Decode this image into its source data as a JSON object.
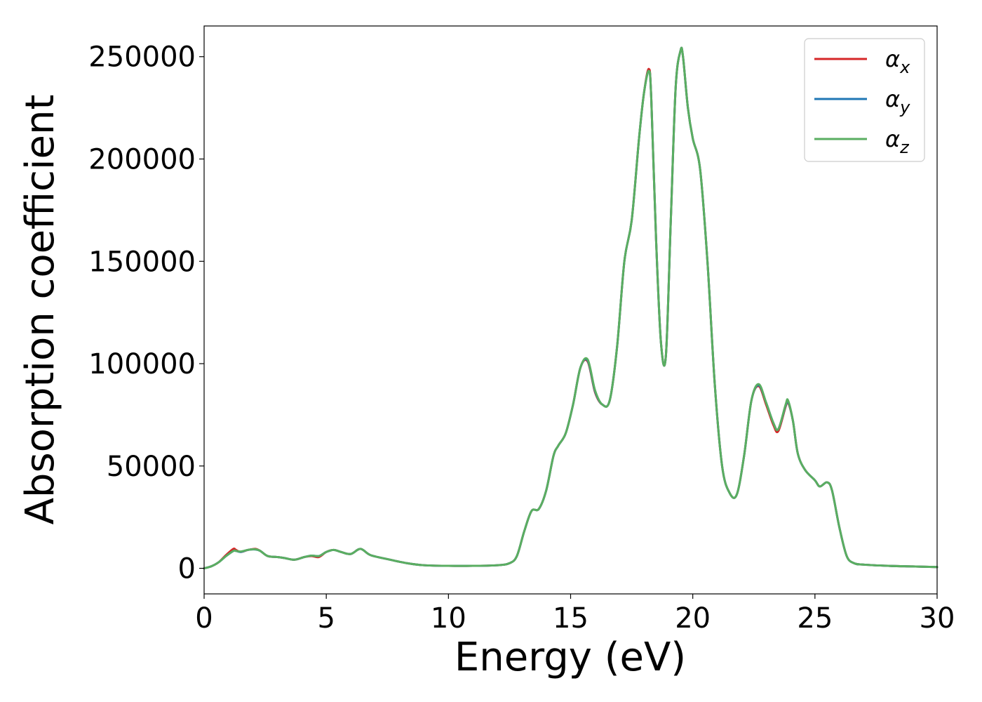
{
  "chart_data": {
    "type": "line",
    "xlabel": "Energy (eV)",
    "ylabel": "Absorption coefficient",
    "xlim": [
      0,
      30
    ],
    "ylim": [
      -12500,
      265000
    ],
    "xticks": [
      0,
      5,
      10,
      15,
      20,
      25,
      30
    ],
    "yticks": [
      0,
      50000,
      100000,
      150000,
      200000,
      250000
    ],
    "grid": false,
    "legend_position": "top-right",
    "series": [
      {
        "name": "α",
        "subscript": "x",
        "color": "#d62728",
        "x": [
          0,
          0.3,
          0.6,
          0.9,
          1.2,
          1.3,
          1.5,
          1.8,
          2.1,
          2.3,
          2.6,
          3.0,
          3.3,
          3.7,
          4.1,
          4.4,
          4.7,
          5.0,
          5.3,
          5.6,
          6.0,
          6.4,
          6.8,
          7.5,
          8.3,
          9.0,
          10.0,
          11.0,
          12.0,
          12.5,
          12.8,
          13.1,
          13.4,
          13.7,
          14.0,
          14.3,
          14.5,
          14.8,
          15.1,
          15.4,
          15.7,
          16.0,
          16.3,
          16.6,
          16.9,
          17.2,
          17.5,
          17.8,
          18.0,
          18.2,
          18.3,
          18.5,
          18.7,
          18.9,
          19.1,
          19.3,
          19.5,
          19.6,
          19.8,
          20.0,
          20.3,
          20.6,
          20.9,
          21.2,
          21.5,
          21.8,
          22.1,
          22.4,
          22.7,
          23.0,
          23.3,
          23.5,
          23.8,
          23.9,
          24.1,
          24.3,
          24.6,
          25.0,
          25.2,
          25.5,
          25.7,
          26.0,
          26.3,
          26.6,
          27.0,
          28.0,
          29.0,
          30.0
        ],
        "y": [
          0,
          1000,
          3000,
          6500,
          9500,
          9000,
          8000,
          9000,
          9500,
          8500,
          6000,
          5500,
          5000,
          4200,
          5500,
          6000,
          5500,
          8000,
          9000,
          8000,
          7000,
          9500,
          6500,
          4500,
          2500,
          1500,
          1200,
          1200,
          1500,
          2500,
          6000,
          18000,
          28000,
          29000,
          38000,
          55000,
          60000,
          66000,
          80000,
          98000,
          101000,
          86000,
          80000,
          82000,
          108000,
          150000,
          170000,
          210000,
          232000,
          244000,
          230000,
          160000,
          110000,
          104000,
          170000,
          235000,
          253000,
          250000,
          225000,
          210000,
          195000,
          150000,
          90000,
          50000,
          37000,
          36000,
          55000,
          82000,
          89000,
          80000,
          70000,
          67000,
          79000,
          81000,
          72000,
          56000,
          48000,
          43000,
          40000,
          42000,
          38000,
          20000,
          6000,
          2500,
          1800,
          1200,
          900,
          600
        ]
      },
      {
        "name": "α",
        "subscript": "y",
        "color": "#1f77b4",
        "x": [
          0,
          0.3,
          0.6,
          0.9,
          1.2,
          1.3,
          1.5,
          1.8,
          2.1,
          2.3,
          2.6,
          3.0,
          3.3,
          3.7,
          4.1,
          4.4,
          4.7,
          5.0,
          5.3,
          5.6,
          6.0,
          6.4,
          6.8,
          7.5,
          8.3,
          9.0,
          10.0,
          11.0,
          12.0,
          12.5,
          12.8,
          13.1,
          13.4,
          13.7,
          14.0,
          14.3,
          14.5,
          14.8,
          15.1,
          15.4,
          15.7,
          16.0,
          16.3,
          16.6,
          16.9,
          17.2,
          17.5,
          17.8,
          18.0,
          18.2,
          18.3,
          18.5,
          18.7,
          18.9,
          19.1,
          19.3,
          19.5,
          19.6,
          19.8,
          20.0,
          20.3,
          20.6,
          20.9,
          21.2,
          21.5,
          21.8,
          22.1,
          22.4,
          22.7,
          23.0,
          23.3,
          23.5,
          23.8,
          23.9,
          24.1,
          24.3,
          24.6,
          25.0,
          25.2,
          25.5,
          25.7,
          26.0,
          26.3,
          26.6,
          27.0,
          28.0,
          29.0,
          30.0
        ],
        "y": [
          0,
          1000,
          3000,
          6000,
          8500,
          8500,
          8000,
          9000,
          9200,
          8500,
          6000,
          5500,
          5000,
          4200,
          5500,
          6200,
          6000,
          8000,
          9000,
          8000,
          7000,
          9500,
          6500,
          4500,
          2500,
          1500,
          1200,
          1200,
          1500,
          2500,
          6000,
          18000,
          28000,
          29000,
          38000,
          55000,
          60000,
          66000,
          80000,
          98000,
          101500,
          86500,
          80000,
          82000,
          108000,
          150000,
          170000,
          210000,
          232000,
          243000,
          230000,
          160000,
          110000,
          104000,
          170000,
          235000,
          253000,
          250000,
          225000,
          210000,
          195000,
          150000,
          90000,
          50000,
          37000,
          36000,
          55000,
          82000,
          89500,
          81000,
          71000,
          68000,
          79500,
          81500,
          72000,
          56000,
          48000,
          43000,
          40000,
          42000,
          38000,
          20000,
          6000,
          2500,
          1800,
          1200,
          900,
          600
        ]
      },
      {
        "name": "α",
        "subscript": "z",
        "color": "#5aae61",
        "x": [
          0,
          0.3,
          0.6,
          0.9,
          1.2,
          1.3,
          1.5,
          1.8,
          2.1,
          2.3,
          2.6,
          3.0,
          3.3,
          3.7,
          4.1,
          4.4,
          4.7,
          5.0,
          5.3,
          5.6,
          6.0,
          6.4,
          6.8,
          7.5,
          8.3,
          9.0,
          10.0,
          11.0,
          12.0,
          12.5,
          12.8,
          13.1,
          13.4,
          13.7,
          14.0,
          14.3,
          14.5,
          14.8,
          15.1,
          15.4,
          15.7,
          16.0,
          16.3,
          16.6,
          16.9,
          17.2,
          17.5,
          17.8,
          18.0,
          18.2,
          18.3,
          18.5,
          18.7,
          18.9,
          19.1,
          19.3,
          19.5,
          19.6,
          19.8,
          20.0,
          20.3,
          20.6,
          20.9,
          21.2,
          21.5,
          21.8,
          22.1,
          22.4,
          22.7,
          23.0,
          23.3,
          23.5,
          23.8,
          23.9,
          24.1,
          24.3,
          24.6,
          25.0,
          25.2,
          25.5,
          25.7,
          26.0,
          26.3,
          26.6,
          27.0,
          28.0,
          29.0,
          30.0
        ],
        "y": [
          0,
          1000,
          3000,
          6000,
          8500,
          8500,
          8200,
          9000,
          9300,
          8500,
          6000,
          5500,
          5000,
          4200,
          5500,
          6200,
          6000,
          8000,
          9000,
          8000,
          7000,
          9500,
          6500,
          4500,
          2500,
          1500,
          1200,
          1200,
          1500,
          2500,
          6000,
          18000,
          28000,
          29000,
          38000,
          55000,
          60000,
          66000,
          80000,
          98000,
          102000,
          87000,
          80000,
          82000,
          108000,
          150000,
          170000,
          210000,
          232000,
          243000,
          230000,
          160000,
          110000,
          104000,
          170000,
          235000,
          253000,
          250000,
          225000,
          210000,
          195000,
          150000,
          90000,
          50000,
          37000,
          36000,
          55000,
          82000,
          90000,
          81000,
          71000,
          68000,
          80000,
          82000,
          72000,
          56000,
          48000,
          43000,
          40000,
          42000,
          38000,
          20000,
          6000,
          2500,
          1800,
          1200,
          900,
          600
        ]
      }
    ]
  }
}
